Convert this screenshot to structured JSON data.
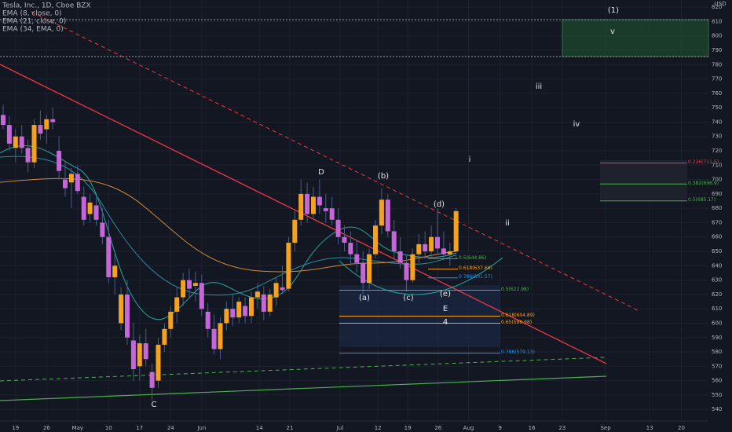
{
  "chart_data": {
    "type": "candlestick",
    "legend": [
      "Tesla, Inc., 1D, Cboe BZX",
      "EMA (8, close, 0)",
      "EMA (21, close, 0)",
      "EMA (34, EMA, 0)"
    ],
    "currency": "USD",
    "up_color": "#f7a21b",
    "down_color": "#c567d8",
    "wick_color": "#4a5b8c",
    "candles": [
      [
        745,
        752,
        735,
        738
      ],
      [
        738,
        744,
        720,
        725
      ],
      [
        722,
        735,
        712,
        730
      ],
      [
        730,
        738,
        718,
        722
      ],
      [
        722,
        728,
        705,
        712
      ],
      [
        712,
        742,
        708,
        738
      ],
      [
        738,
        748,
        728,
        732
      ],
      [
        735,
        745,
        725,
        742
      ],
      [
        742,
        750,
        735,
        740
      ],
      [
        720,
        730,
        700,
        706
      ],
      [
        700,
        712,
        688,
        694
      ],
      [
        698,
        708,
        680,
        704
      ],
      [
        704,
        710,
        690,
        692
      ],
      [
        688,
        695,
        668,
        672
      ],
      [
        676,
        690,
        670,
        684
      ],
      [
        682,
        688,
        668,
        672
      ],
      [
        670,
        680,
        655,
        660
      ],
      [
        660,
        672,
        628,
        632
      ],
      [
        632,
        648,
        620,
        640
      ],
      [
        600,
        625,
        595,
        620
      ],
      [
        620,
        630,
        585,
        590
      ],
      [
        588,
        600,
        560,
        568
      ],
      [
        570,
        592,
        560,
        586
      ],
      [
        586,
        596,
        570,
        575
      ],
      [
        566,
        572,
        546,
        555
      ],
      [
        560,
        590,
        555,
        585
      ],
      [
        585,
        600,
        580,
        596
      ],
      [
        596,
        612,
        590,
        608
      ],
      [
        608,
        625,
        600,
        618
      ],
      [
        618,
        635,
        612,
        630
      ],
      [
        630,
        638,
        618,
        624
      ],
      [
        626,
        636,
        615,
        628
      ],
      [
        628,
        634,
        605,
        610
      ],
      [
        608,
        614,
        590,
        596
      ],
      [
        596,
        606,
        578,
        582
      ],
      [
        582,
        604,
        575,
        600
      ],
      [
        600,
        615,
        595,
        610
      ],
      [
        610,
        620,
        598,
        604
      ],
      [
        604,
        618,
        600,
        615
      ],
      [
        612,
        618,
        600,
        605
      ],
      [
        605,
        622,
        600,
        618
      ],
      [
        618,
        628,
        610,
        622
      ],
      [
        620,
        626,
        602,
        608
      ],
      [
        608,
        624,
        605,
        620
      ],
      [
        618,
        632,
        612,
        628
      ],
      [
        625,
        640,
        620,
        623
      ],
      [
        624,
        660,
        622,
        656
      ],
      [
        656,
        678,
        650,
        672
      ],
      [
        672,
        700,
        668,
        690
      ],
      [
        690,
        698,
        670,
        676
      ],
      [
        676,
        695,
        672,
        688
      ],
      [
        688,
        700,
        676,
        682
      ],
      [
        680,
        690,
        670,
        678
      ],
      [
        680,
        688,
        668,
        672
      ],
      [
        672,
        680,
        655,
        660
      ],
      [
        660,
        668,
        650,
        656
      ],
      [
        656,
        664,
        640,
        648
      ],
      [
        648,
        658,
        635,
        642
      ],
      [
        642,
        650,
        620,
        628
      ],
      [
        628,
        652,
        624,
        648
      ],
      [
        648,
        672,
        645,
        668
      ],
      [
        668,
        694,
        662,
        686
      ],
      [
        686,
        690,
        660,
        664
      ],
      [
        664,
        672,
        645,
        650
      ],
      [
        650,
        660,
        638,
        642
      ],
      [
        642,
        648,
        622,
        630
      ],
      [
        630,
        652,
        628,
        648
      ],
      [
        648,
        662,
        642,
        655
      ],
      [
        655,
        664,
        645,
        650
      ],
      [
        650,
        668,
        646,
        660
      ],
      [
        660,
        680,
        648,
        652
      ],
      [
        652,
        664,
        644,
        648
      ],
      [
        648,
        656,
        640,
        650
      ],
      [
        650,
        680,
        645,
        678
      ]
    ],
    "xticks": [
      {
        "value": 2,
        "label": "19"
      },
      {
        "value": 7,
        "label": "26"
      },
      {
        "value": 12,
        "label": "May"
      },
      {
        "value": 17,
        "label": "10"
      },
      {
        "value": 22,
        "label": "17"
      },
      {
        "value": 27,
        "label": "24"
      },
      {
        "value": 32,
        "label": "Jun"
      },
      {
        "value": 41.3,
        "label": "14"
      },
      {
        "value": 46.2,
        "label": "21"
      },
      {
        "value": 54.3,
        "label": "Jul"
      },
      {
        "value": 60.4,
        "label": "12"
      },
      {
        "value": 65.2,
        "label": "19"
      },
      {
        "value": 70.1,
        "label": "26"
      },
      {
        "value": 75,
        "label": "Aug"
      },
      {
        "value": 80.1,
        "label": "9"
      },
      {
        "value": 85.2,
        "label": "16"
      },
      {
        "value": 90.1,
        "label": "23"
      },
      {
        "value": 97.1,
        "label": "Sep"
      },
      {
        "value": 104.2,
        "label": "13"
      },
      {
        "value": 109.3,
        "label": "20"
      }
    ],
    "ylim": [
      533,
      825
    ],
    "yticks": [
      540,
      550,
      560,
      570,
      580,
      590,
      600,
      610,
      620,
      630,
      640,
      650,
      660,
      670,
      680,
      690,
      700,
      710,
      720,
      730,
      740,
      750,
      760,
      770,
      780,
      790,
      800,
      810,
      820
    ],
    "fib_levels": [
      {
        "label": "0.5(644.86)",
        "value": 644.86,
        "color": "#4caf50",
        "group": 1
      },
      {
        "label": "0.618(637.66)",
        "value": 637.66,
        "color": "#f7a21b",
        "group": 1
      },
      {
        "label": "0.786(631.57)",
        "value": 631.57,
        "color": "#2196f3",
        "group": 1
      },
      {
        "label": "0.5(622.98)",
        "value": 622.98,
        "color": "#4caf50",
        "group": 2
      },
      {
        "label": "0.618(604.89)",
        "value": 604.89,
        "color": "#f7a21b",
        "group": 2
      },
      {
        "label": "0.65(599.98)",
        "value": 599.98,
        "color": "#f7a21b",
        "group": 2
      },
      {
        "label": "0.786(579.13)",
        "value": 579.13,
        "color": "#2196f3",
        "group": 2
      },
      {
        "label": "0.236(711.5)",
        "value": 711.5,
        "color": "#f23645",
        "group": 3
      },
      {
        "label": "0.382(696.9)",
        "value": 696.9,
        "color": "#4caf50",
        "group": 3
      },
      {
        "label": "0.5(685.17)",
        "value": 685.17,
        "color": "#4caf50",
        "group": 3
      }
    ],
    "waves": [
      "(1)",
      "v",
      "iii",
      "iv",
      "i",
      "ii",
      "D",
      "(b)",
      "(d)",
      "(a)",
      "(c)",
      "(e)",
      "E",
      "4",
      "C"
    ]
  }
}
